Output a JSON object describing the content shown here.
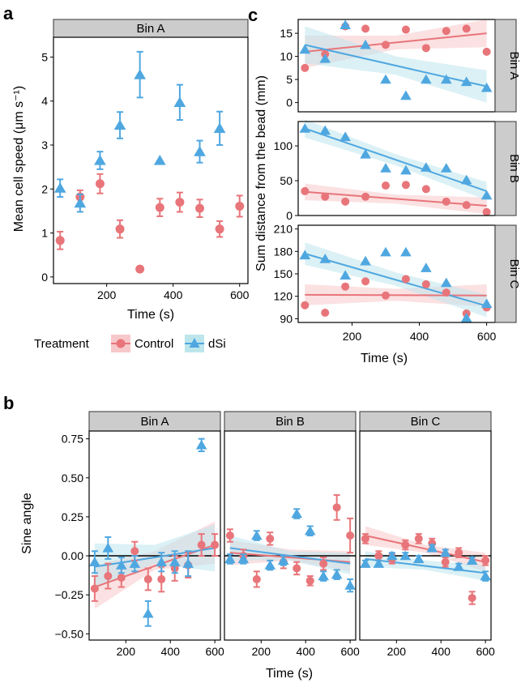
{
  "figure": {
    "panel_a_letter": "a",
    "panel_b_letter": "b",
    "panel_c_letter": "c"
  },
  "legend": {
    "title": "Treatment",
    "items": [
      {
        "label": "Control",
        "color": "#E8757A",
        "shape": "circle"
      },
      {
        "label": "dSi",
        "color": "#4FA7E0",
        "shape": "triangle"
      }
    ]
  },
  "colors": {
    "control": "#E8757A",
    "dsi": "#4FA7E0",
    "control_band": "#F7C8CA",
    "dsi_band": "#BDE6EC",
    "strip_bg": "#CCCCCC",
    "zero_line": "#000000"
  },
  "chart_data": [
    {
      "id": "a",
      "type": "scatter",
      "facets": [
        "Bin A"
      ],
      "xlabel": "Time (s)",
      "ylabel": "Mean cell speed (μm s⁻¹)",
      "xlim": [
        40,
        625
      ],
      "ylim": [
        -0.15,
        5.45
      ],
      "xticks": [
        200,
        400,
        600
      ],
      "yticks": [
        0,
        1,
        2,
        3,
        4,
        5
      ],
      "series": [
        {
          "name": "Control",
          "color": "#E8757A",
          "shape": "circle",
          "x": [
            60,
            120,
            180,
            240,
            300,
            360,
            420,
            480,
            540,
            600
          ],
          "y": [
            0.83,
            1.82,
            2.12,
            1.09,
            0.18,
            1.58,
            1.7,
            1.56,
            1.09,
            1.61
          ],
          "err": [
            0.2,
            0.15,
            0.22,
            0.2,
            0.0,
            0.2,
            0.22,
            0.2,
            0.18,
            0.24
          ]
        },
        {
          "name": "dSi",
          "color": "#4FA7E0",
          "shape": "triangle",
          "x": [
            60,
            120,
            180,
            240,
            300,
            360,
            420,
            480,
            540
          ],
          "y": [
            2.02,
            1.68,
            2.65,
            3.45,
            4.6,
            2.65,
            3.97,
            2.85,
            3.38
          ],
          "err": [
            0.2,
            0.2,
            0.2,
            0.3,
            0.52,
            0.0,
            0.4,
            0.25,
            0.38
          ]
        }
      ]
    },
    {
      "id": "b",
      "type": "scatter",
      "facets": [
        "Bin A",
        "Bin B",
        "Bin C"
      ],
      "xlabel": "Time (s)",
      "ylabel": "Sine angle",
      "xlim": [
        35,
        625
      ],
      "ylim": [
        -0.54,
        0.8
      ],
      "xticks": [
        200,
        400,
        600
      ],
      "yticks": [
        -0.5,
        -0.25,
        0.0,
        0.25,
        0.5,
        0.75
      ],
      "ytick_labels": [
        "−0.50",
        "−0.25",
        "0.00",
        "0.25",
        "0.50",
        "0.75"
      ],
      "zero_line": 0,
      "facet_data": [
        {
          "facet": "Bin A",
          "control": {
            "x": [
              60,
              120,
              180,
              240,
              300,
              360,
              420,
              480,
              540,
              600
            ],
            "y": [
              -0.21,
              -0.13,
              -0.14,
              0.03,
              -0.15,
              -0.15,
              -0.08,
              -0.06,
              0.07,
              0.07
            ],
            "err": [
              0.08,
              0.08,
              0.06,
              0.06,
              0.07,
              0.08,
              0.08,
              0.08,
              0.07,
              0.07
            ]
          },
          "dsi": {
            "x": [
              60,
              120,
              180,
              240,
              300,
              360,
              420,
              480,
              540
            ],
            "y": [
              -0.04,
              0.05,
              -0.06,
              -0.05,
              -0.37,
              -0.04,
              -0.04,
              -0.05,
              0.71
            ],
            "err": [
              0.07,
              0.07,
              0.05,
              0.05,
              0.08,
              0.06,
              0.07,
              0.08,
              0.04
            ]
          },
          "control_fit": {
            "x0": 60,
            "y0": -0.2,
            "x1": 600,
            "y1": 0.07,
            "ci_x0": [
              -0.34,
              -0.06
            ],
            "ci_mid": [
              -0.09,
              0.03
            ],
            "ci_x1": [
              -0.05,
              0.22
            ]
          },
          "dsi_fit": {
            "x0": 60,
            "y0": -0.07,
            "x1": 600,
            "y1": 0.05,
            "ci_x0": [
              -0.2,
              0.08
            ],
            "ci_mid": [
              -0.05,
              0.07
            ],
            "ci_x1": [
              -0.1,
              0.2
            ]
          }
        },
        {
          "facet": "Bin B",
          "control": {
            "x": [
              60,
              120,
              180,
              240,
              300,
              360,
              420,
              480,
              540,
              600
            ],
            "y": [
              0.13,
              0.0,
              -0.15,
              0.11,
              -0.04,
              -0.08,
              -0.16,
              -0.05,
              0.31,
              0.13
            ],
            "err": [
              0.04,
              0.04,
              0.05,
              0.04,
              0.04,
              0.04,
              0.03,
              0.04,
              0.08,
              0.11
            ]
          },
          "dsi": {
            "x": [
              60,
              120,
              180,
              240,
              300,
              360,
              420,
              480,
              540,
              600
            ],
            "y": [
              -0.02,
              -0.02,
              0.13,
              -0.06,
              -0.03,
              0.27,
              0.16,
              -0.13,
              -0.12,
              -0.19
            ],
            "err": [
              0.03,
              0.03,
              0.03,
              0.03,
              0.03,
              0.03,
              0.03,
              0.03,
              0.03,
              0.04
            ]
          },
          "control_fit": {
            "x0": 60,
            "y0": 0.02,
            "x1": 600,
            "y1": -0.04,
            "ci_x0": [
              -0.06,
              0.1
            ],
            "ci_mid": [
              -0.03,
              0.04
            ],
            "ci_x1": [
              -0.1,
              0.03
            ]
          },
          "dsi_fit": {
            "x0": 60,
            "y0": 0.05,
            "x1": 600,
            "y1": -0.05,
            "ci_x0": [
              -0.03,
              0.13
            ],
            "ci_mid": [
              -0.03,
              0.03
            ],
            "ci_x1": [
              -0.12,
              0.02
            ]
          }
        },
        {
          "facet": "Bin C",
          "control": {
            "x": [
              60,
              120,
              180,
              240,
              300,
              360,
              420,
              480,
              540,
              600
            ],
            "y": [
              0.11,
              0.0,
              -0.02,
              0.07,
              0.11,
              0.08,
              -0.04,
              0.02,
              -0.27,
              -0.03
            ],
            "err": [
              0.03,
              0.03,
              0.03,
              0.03,
              0.03,
              0.03,
              0.03,
              0.03,
              0.04,
              0.03
            ]
          },
          "dsi": {
            "x": [
              60,
              120,
              180,
              240,
              300,
              360,
              420,
              480,
              540,
              600
            ],
            "y": [
              -0.05,
              -0.05,
              0.0,
              0.0,
              -0.02,
              0.05,
              0.02,
              -0.07,
              -0.03,
              -0.13
            ],
            "err": [
              0.02,
              0.02,
              0.02,
              0.02,
              0.02,
              0.02,
              0.02,
              0.02,
              0.02,
              0.03
            ]
          },
          "control_fit": {
            "x0": 60,
            "y0": 0.13,
            "x1": 600,
            "y1": -0.04,
            "ci_x0": [
              0.07,
              0.19
            ],
            "ci_mid": [
              0.02,
              0.07
            ],
            "ci_x1": [
              -0.1,
              0.02
            ]
          },
          "dsi_fit": {
            "x0": 60,
            "y0": -0.02,
            "x1": 600,
            "y1": -0.11,
            "ci_x0": [
              -0.07,
              0.03
            ],
            "ci_mid": [
              -0.09,
              -0.03
            ],
            "ci_x1": [
              -0.16,
              -0.06
            ]
          }
        }
      ]
    },
    {
      "id": "c",
      "type": "scatter",
      "facets": [
        "Bin A",
        "Bin B",
        "Bin C"
      ],
      "xlabel": "Time (s)",
      "ylabel": "Sum distance from the bead (mm)",
      "xlim": [
        40,
        625
      ],
      "xticks": [
        200,
        400,
        600
      ],
      "facet_data": [
        {
          "facet": "Bin A",
          "ylim": [
            -2,
            18
          ],
          "yticks": [
            0,
            5,
            10,
            15
          ],
          "control": {
            "x": [
              60,
              120,
              180,
              240,
              300,
              360,
              420,
              480,
              540,
              600
            ],
            "y": [
              7.5,
              10.5,
              16.5,
              16.0,
              12.5,
              15.8,
              11.8,
              15.5,
              16.0,
              11.0
            ]
          },
          "dsi": {
            "x": [
              60,
              120,
              180,
              240,
              300,
              360,
              420,
              480,
              540,
              600
            ],
            "y": [
              11.5,
              9.5,
              16.8,
              12.5,
              5.0,
              1.5,
              5.0,
              5.0,
              4.5,
              3.2
            ]
          },
          "control_fit": {
            "x0": 60,
            "y0": 11.0,
            "x1": 600,
            "y1": 15.0,
            "ci_x0": [
              7.5,
              14.5
            ],
            "ci_mid": [
              11.5,
              14.5
            ],
            "ci_x1": [
              12.0,
              18.0
            ]
          },
          "dsi_fit": {
            "x0": 60,
            "y0": 12.5,
            "x1": 600,
            "y1": 3.5,
            "ci_x0": [
              8.5,
              16.5
            ],
            "ci_mid": [
              6.0,
              10.0
            ],
            "ci_x1": [
              0.0,
              7.0
            ]
          }
        },
        {
          "facet": "Bin B",
          "ylim": [
            0,
            135
          ],
          "yticks": [
            0,
            50,
            100
          ],
          "control": {
            "x": [
              60,
              120,
              180,
              240,
              300,
              360,
              420,
              480,
              540,
              600
            ],
            "y": [
              35,
              27,
              20,
              27,
              43,
              44,
              38,
              20,
              15,
              5
            ]
          },
          "dsi": {
            "x": [
              60,
              120,
              180,
              240,
              300,
              360,
              420,
              480,
              540,
              600
            ],
            "y": [
              125,
              122,
              113,
              88,
              68,
              65,
              69,
              68,
              51,
              29
            ]
          },
          "control_fit": {
            "x0": 60,
            "y0": 34,
            "x1": 600,
            "y1": 14,
            "ci_x0": [
              22,
              46
            ],
            "ci_mid": [
              17,
              30
            ],
            "ci_x1": [
              2,
              26
            ]
          },
          "dsi_fit": {
            "x0": 60,
            "y0": 125,
            "x1": 600,
            "y1": 35,
            "ci_x0": [
              112,
              138
            ],
            "ci_mid": [
              72,
              88
            ],
            "ci_x1": [
              22,
              48
            ]
          }
        },
        {
          "facet": "Bin C",
          "ylim": [
            85,
            215
          ],
          "yticks": [
            90,
            120,
            150,
            180,
            210
          ],
          "control": {
            "x": [
              60,
              120,
              180,
              240,
              300,
              360,
              420,
              480,
              540,
              600
            ],
            "y": [
              108,
              98,
              133,
              140,
              121,
              143,
              136,
              125,
              97,
              105
            ]
          },
          "dsi": {
            "x": [
              60,
              120,
              180,
              240,
              300,
              360,
              420,
              480,
              540,
              600
            ],
            "y": [
              175,
              170,
              148,
              167,
              179,
              179,
              158,
              138,
              91,
              110
            ]
          },
          "control_fit": {
            "x0": 60,
            "y0": 122,
            "x1": 600,
            "y1": 121,
            "ci_x0": [
              108,
              136
            ],
            "ci_mid": [
              114,
              130
            ],
            "ci_x1": [
              106,
              136
            ]
          },
          "dsi_fit": {
            "x0": 60,
            "y0": 177,
            "x1": 600,
            "y1": 107,
            "ci_x0": [
              162,
              192
            ],
            "ci_mid": [
              134,
              152
            ],
            "ci_x1": [
              92,
              122
            ]
          }
        }
      ]
    }
  ]
}
